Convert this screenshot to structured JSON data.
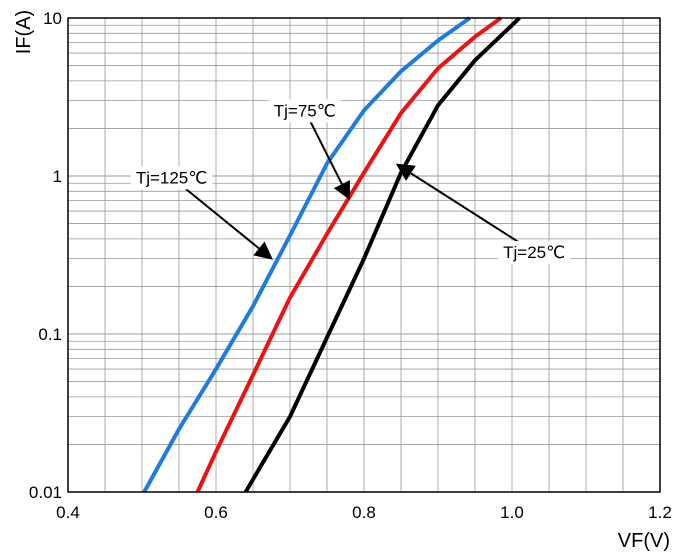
{
  "chart_data": {
    "type": "line",
    "xlabel": "VF(V)",
    "ylabel": "IF(A)",
    "xlim": [
      0.4,
      1.2
    ],
    "ylim": [
      0.01,
      10
    ],
    "yscale": "log",
    "grid": true,
    "x_ticks": [
      0.4,
      0.6,
      0.8,
      1.0,
      1.2
    ],
    "x_tick_labels": [
      "0.4",
      "0.6",
      "0.8",
      "1.0",
      "1.2"
    ],
    "y_ticks": [
      0.01,
      0.1,
      1,
      10
    ],
    "y_tick_labels": [
      "0.01",
      "0.1",
      "1",
      "10"
    ],
    "series": [
      {
        "name": "Tj=125℃",
        "color": "#1e7be0",
        "points": [
          [
            0.503,
            0.01
          ],
          [
            0.55,
            0.025
          ],
          [
            0.6,
            0.06
          ],
          [
            0.65,
            0.15
          ],
          [
            0.7,
            0.42
          ],
          [
            0.75,
            1.2
          ],
          [
            0.8,
            2.6
          ],
          [
            0.85,
            4.6
          ],
          [
            0.9,
            7.2
          ],
          [
            0.943,
            10
          ]
        ]
      },
      {
        "name": "Tj=75℃",
        "color": "#ee1111",
        "points": [
          [
            0.575,
            0.01
          ],
          [
            0.6,
            0.018
          ],
          [
            0.65,
            0.055
          ],
          [
            0.7,
            0.17
          ],
          [
            0.75,
            0.43
          ],
          [
            0.8,
            1.05
          ],
          [
            0.85,
            2.5
          ],
          [
            0.9,
            4.8
          ],
          [
            0.95,
            7.6
          ],
          [
            0.985,
            10
          ]
        ]
      },
      {
        "name": "Tj=25℃",
        "color": "#000000",
        "points": [
          [
            0.64,
            0.01
          ],
          [
            0.7,
            0.03
          ],
          [
            0.75,
            0.095
          ],
          [
            0.8,
            0.3
          ],
          [
            0.85,
            1.05
          ],
          [
            0.9,
            2.8
          ],
          [
            0.95,
            5.4
          ],
          [
            1.0,
            9.0
          ],
          [
            1.01,
            10
          ]
        ]
      }
    ],
    "annotations": [
      {
        "text": "Tj=75℃",
        "label_at": [
          0.72,
          2.6
        ],
        "arrow_to": [
          0.78,
          0.72
        ]
      },
      {
        "text": "Tj=125℃",
        "label_at": [
          0.54,
          0.98
        ],
        "arrow_to": [
          0.675,
          0.3
        ]
      },
      {
        "text": "Tj=25℃",
        "label_at": [
          1.03,
          0.33
        ],
        "arrow_to": [
          0.845,
          1.18
        ]
      }
    ]
  }
}
